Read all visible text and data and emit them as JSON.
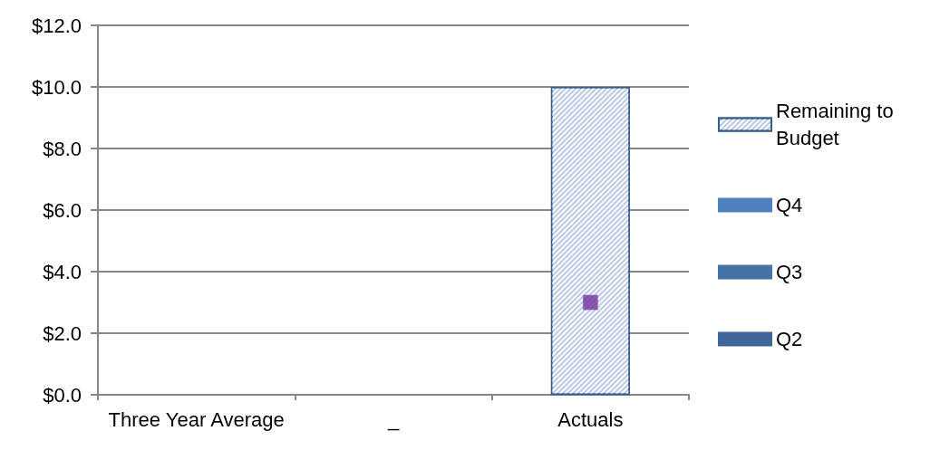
{
  "chart_data": {
    "type": "bar",
    "stacked": true,
    "categories": [
      "Three Year Average",
      "_",
      "Actuals"
    ],
    "series": [
      {
        "name": "Q2",
        "color": "#3f679a",
        "values": [
          null,
          null,
          0
        ]
      },
      {
        "name": "Q3",
        "color": "#4572a7",
        "values": [
          null,
          null,
          0
        ]
      },
      {
        "name": "Q4",
        "color": "#4f81bd",
        "values": [
          null,
          null,
          0
        ]
      },
      {
        "name": "Remaining to Budget",
        "color": "#b9c9e3",
        "values": [
          null,
          null,
          10.0
        ]
      },
      {
        "type": "scatter",
        "color": "#7030a0",
        "marker": "square",
        "x": [
          "Actuals"
        ],
        "values": [
          3.0
        ]
      }
    ],
    "ylim": [
      0,
      12
    ],
    "yticks": [
      {
        "value": 0,
        "label": "$0.0"
      },
      {
        "value": 2,
        "label": "$2.0"
      },
      {
        "value": 4,
        "label": "$4.0"
      },
      {
        "value": 6,
        "label": "$6.0"
      },
      {
        "value": 8,
        "label": "$8.0"
      },
      {
        "value": 10,
        "label": "$10.0"
      },
      {
        "value": 12,
        "label": "$12.0"
      }
    ],
    "grid": "y",
    "legend": "right"
  }
}
